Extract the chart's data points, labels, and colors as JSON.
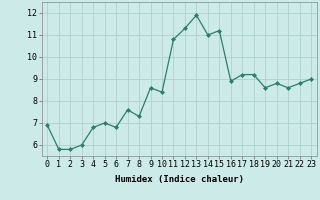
{
  "x": [
    0,
    1,
    2,
    3,
    4,
    5,
    6,
    7,
    8,
    9,
    10,
    11,
    12,
    13,
    14,
    15,
    16,
    17,
    18,
    19,
    20,
    21,
    22,
    23
  ],
  "y": [
    6.9,
    5.8,
    5.8,
    6.0,
    6.8,
    7.0,
    6.8,
    7.6,
    7.3,
    8.6,
    8.4,
    10.8,
    11.3,
    11.9,
    11.0,
    11.2,
    8.9,
    9.2,
    9.2,
    8.6,
    8.8,
    8.6,
    8.8,
    9.0
  ],
  "line_color": "#2d7d6e",
  "marker": "D",
  "marker_size": 2.0,
  "bg_color": "#cceae7",
  "grid_color": "#b0d0cc",
  "xlabel": "Humidex (Indice chaleur)",
  "xlim": [
    -0.5,
    23.5
  ],
  "ylim": [
    5.5,
    12.5
  ],
  "yticks": [
    6,
    7,
    8,
    9,
    10,
    11,
    12
  ],
  "xtick_labels": [
    "0",
    "1",
    "2",
    "3",
    "4",
    "5",
    "6",
    "7",
    "8",
    "9",
    "10",
    "11",
    "12",
    "13",
    "14",
    "15",
    "16",
    "17",
    "18",
    "19",
    "20",
    "21",
    "22",
    "23"
  ],
  "xlabel_fontsize": 6.5,
  "tick_fontsize": 6.0
}
